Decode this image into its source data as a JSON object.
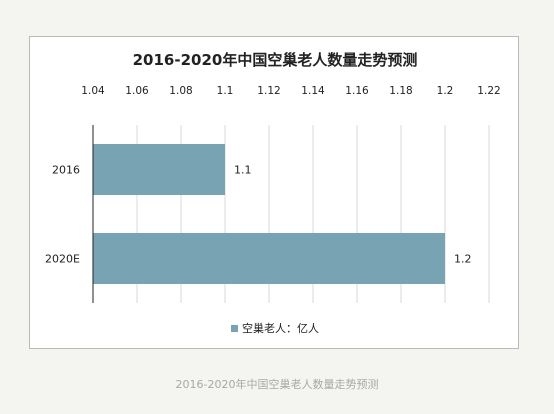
{
  "chart_data": {
    "type": "bar",
    "orientation": "horizontal",
    "title": "2016-2020年中国空巢老人数量走势预测",
    "categories": [
      "2016",
      "2020E"
    ],
    "series": [
      {
        "name": "空巢老人：亿人",
        "values": [
          1.1,
          1.2
        ],
        "color": "#78a3b2"
      }
    ],
    "data_labels": [
      "1.1",
      "1.2"
    ],
    "x_ticks": [
      "1.04",
      "1.06",
      "1.08",
      "1.1",
      "1.12",
      "1.14",
      "1.16",
      "1.18",
      "1.2",
      "1.22"
    ],
    "xlim": [
      1.04,
      1.22
    ],
    "x_axis_position": "top",
    "grid": true,
    "legend": "bottom"
  },
  "caption": "2016-2020年中国空巢老人数量走势预测"
}
